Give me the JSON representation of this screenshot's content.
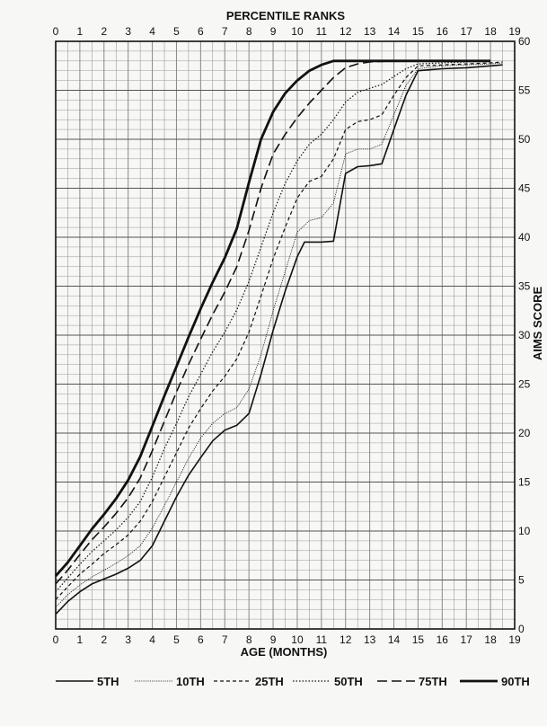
{
  "chart_data": {
    "type": "line",
    "title": "PERCENTILE RANKS",
    "xlabel": "AGE (MONTHS)",
    "ylabel": "AIMS SCORE",
    "xlim": [
      0,
      19
    ],
    "ylim": [
      0,
      60
    ],
    "x_ticks": [
      "0",
      "1",
      "2",
      "3",
      "4",
      "5",
      "6",
      "7",
      "8",
      "9",
      "10",
      "11",
      "12",
      "13",
      "14",
      "15",
      "16",
      "17",
      "18",
      "19"
    ],
    "y_ticks": [
      "0",
      "5",
      "10",
      "15",
      "20",
      "25",
      "30",
      "35",
      "40",
      "45",
      "50",
      "55",
      "60"
    ],
    "grid": true,
    "legend_position": "bottom",
    "series": [
      {
        "name": "5TH",
        "style": "solid-thin",
        "points": [
          [
            0,
            1.5
          ],
          [
            0.5,
            2.8
          ],
          [
            1,
            3.8
          ],
          [
            1.5,
            4.6
          ],
          [
            2,
            5.1
          ],
          [
            2.5,
            5.6
          ],
          [
            3,
            6.2
          ],
          [
            3.5,
            7.0
          ],
          [
            4,
            8.5
          ],
          [
            4.5,
            11.0
          ],
          [
            5,
            13.5
          ],
          [
            5.5,
            15.7
          ],
          [
            6,
            17.5
          ],
          [
            6.5,
            19.2
          ],
          [
            7,
            20.3
          ],
          [
            7.5,
            20.8
          ],
          [
            8,
            22.0
          ],
          [
            8.5,
            26.0
          ],
          [
            9,
            30.5
          ],
          [
            9.5,
            34.5
          ],
          [
            10,
            38.0
          ],
          [
            10.3,
            39.5
          ],
          [
            11,
            39.5
          ],
          [
            11.5,
            39.6
          ],
          [
            12,
            46.5
          ],
          [
            12.5,
            47.2
          ],
          [
            13,
            47.3
          ],
          [
            13.5,
            47.5
          ],
          [
            14,
            51.0
          ],
          [
            14.5,
            54.5
          ],
          [
            15,
            57.0
          ],
          [
            15.5,
            57.1
          ],
          [
            16,
            57.2
          ],
          [
            17,
            57.3
          ],
          [
            18,
            57.5
          ],
          [
            18.5,
            57.6
          ]
        ]
      },
      {
        "name": "10TH",
        "style": "dotted-fine",
        "points": [
          [
            0,
            2.2
          ],
          [
            0.5,
            3.5
          ],
          [
            1,
            4.5
          ],
          [
            1.5,
            5.3
          ],
          [
            2,
            6.0
          ],
          [
            2.5,
            6.7
          ],
          [
            3,
            7.5
          ],
          [
            3.5,
            8.5
          ],
          [
            4,
            10.3
          ],
          [
            4.5,
            12.6
          ],
          [
            5,
            15.0
          ],
          [
            5.5,
            17.4
          ],
          [
            6,
            19.5
          ],
          [
            6.5,
            21.0
          ],
          [
            7,
            22.0
          ],
          [
            7.5,
            22.6
          ],
          [
            8,
            24.5
          ],
          [
            8.5,
            28.0
          ],
          [
            9,
            32.5
          ],
          [
            9.5,
            36.5
          ],
          [
            10,
            40.5
          ],
          [
            10.5,
            41.7
          ],
          [
            11,
            42.0
          ],
          [
            11.5,
            43.5
          ],
          [
            12,
            48.5
          ],
          [
            12.5,
            49.0
          ],
          [
            13,
            49.0
          ],
          [
            13.5,
            49.5
          ],
          [
            14,
            52.5
          ],
          [
            14.5,
            55.5
          ],
          [
            15,
            57.2
          ],
          [
            16,
            57.5
          ],
          [
            17,
            57.6
          ],
          [
            18,
            57.7
          ],
          [
            18.5,
            57.8
          ]
        ]
      },
      {
        "name": "25TH",
        "style": "short-dash",
        "points": [
          [
            0,
            3.0
          ],
          [
            0.5,
            4.3
          ],
          [
            1,
            5.6
          ],
          [
            1.5,
            6.6
          ],
          [
            2,
            7.7
          ],
          [
            2.5,
            8.6
          ],
          [
            3,
            9.6
          ],
          [
            3.5,
            11.0
          ],
          [
            4,
            13.0
          ],
          [
            4.5,
            15.5
          ],
          [
            5,
            18.0
          ],
          [
            5.5,
            20.5
          ],
          [
            6,
            22.5
          ],
          [
            6.5,
            24.3
          ],
          [
            7,
            25.8
          ],
          [
            7.5,
            27.6
          ],
          [
            8,
            30.3
          ],
          [
            8.5,
            34.0
          ],
          [
            9,
            37.8
          ],
          [
            9.5,
            41.0
          ],
          [
            10,
            44.0
          ],
          [
            10.5,
            45.7
          ],
          [
            11,
            46.2
          ],
          [
            11.5,
            48.0
          ],
          [
            12,
            51.0
          ],
          [
            12.5,
            51.8
          ],
          [
            13,
            52.0
          ],
          [
            13.5,
            52.5
          ],
          [
            14,
            54.5
          ],
          [
            14.5,
            56.3
          ],
          [
            15,
            57.5
          ],
          [
            16,
            57.6
          ],
          [
            17,
            57.7
          ],
          [
            18,
            57.8
          ],
          [
            18.5,
            57.9
          ]
        ]
      },
      {
        "name": "50TH",
        "style": "dotted",
        "points": [
          [
            0,
            3.8
          ],
          [
            0.5,
            5.2
          ],
          [
            1,
            6.6
          ],
          [
            1.5,
            7.9
          ],
          [
            2,
            9.0
          ],
          [
            2.5,
            10.1
          ],
          [
            3,
            11.4
          ],
          [
            3.5,
            13.0
          ],
          [
            4,
            15.5
          ],
          [
            4.5,
            18.4
          ],
          [
            5,
            21.0
          ],
          [
            5.5,
            23.7
          ],
          [
            6,
            26.0
          ],
          [
            6.5,
            28.3
          ],
          [
            7,
            30.3
          ],
          [
            7.5,
            32.6
          ],
          [
            8,
            35.5
          ],
          [
            8.5,
            39.0
          ],
          [
            9,
            42.5
          ],
          [
            9.5,
            45.5
          ],
          [
            10,
            47.8
          ],
          [
            10.5,
            49.5
          ],
          [
            11,
            50.5
          ],
          [
            11.5,
            52.0
          ],
          [
            12,
            53.8
          ],
          [
            12.5,
            54.8
          ],
          [
            13,
            55.2
          ],
          [
            13.5,
            55.6
          ],
          [
            14,
            56.4
          ],
          [
            14.5,
            57.2
          ],
          [
            15,
            57.7
          ],
          [
            16,
            57.8
          ],
          [
            17,
            57.9
          ],
          [
            18,
            58.0
          ]
        ]
      },
      {
        "name": "75TH",
        "style": "long-dash",
        "points": [
          [
            0,
            4.6
          ],
          [
            0.5,
            6.0
          ],
          [
            1,
            7.6
          ],
          [
            1.5,
            9.1
          ],
          [
            2,
            10.4
          ],
          [
            2.5,
            11.8
          ],
          [
            3,
            13.4
          ],
          [
            3.5,
            15.4
          ],
          [
            4,
            18.2
          ],
          [
            4.5,
            21.2
          ],
          [
            5,
            24.2
          ],
          [
            5.5,
            27.0
          ],
          [
            6,
            29.6
          ],
          [
            6.5,
            32.1
          ],
          [
            7,
            34.4
          ],
          [
            7.5,
            37.0
          ],
          [
            8,
            40.7
          ],
          [
            8.5,
            45.0
          ],
          [
            9,
            48.5
          ],
          [
            9.5,
            50.5
          ],
          [
            10,
            52.2
          ],
          [
            10.5,
            53.7
          ],
          [
            11,
            55.0
          ],
          [
            11.5,
            56.3
          ],
          [
            12,
            57.3
          ],
          [
            12.5,
            57.7
          ],
          [
            13,
            57.9
          ],
          [
            14,
            58.0
          ],
          [
            15,
            58.0
          ],
          [
            16,
            58.0
          ],
          [
            17,
            58.0
          ],
          [
            18,
            58.0
          ]
        ]
      },
      {
        "name": "90TH",
        "style": "solid-thick",
        "points": [
          [
            0,
            5.4
          ],
          [
            0.5,
            6.8
          ],
          [
            1,
            8.5
          ],
          [
            1.5,
            10.2
          ],
          [
            2,
            11.7
          ],
          [
            2.5,
            13.3
          ],
          [
            3,
            15.2
          ],
          [
            3.5,
            17.6
          ],
          [
            4,
            20.7
          ],
          [
            4.5,
            23.8
          ],
          [
            5,
            26.8
          ],
          [
            5.5,
            29.8
          ],
          [
            6,
            32.7
          ],
          [
            6.5,
            35.4
          ],
          [
            7,
            37.9
          ],
          [
            7.5,
            40.9
          ],
          [
            8,
            45.6
          ],
          [
            8.5,
            50.0
          ],
          [
            9,
            52.8
          ],
          [
            9.5,
            54.7
          ],
          [
            10,
            56.0
          ],
          [
            10.5,
            57.0
          ],
          [
            11,
            57.6
          ],
          [
            11.5,
            58.0
          ],
          [
            12,
            58.0
          ],
          [
            13,
            58.0
          ],
          [
            14,
            58.0
          ],
          [
            15,
            58.0
          ],
          [
            16,
            58.0
          ],
          [
            17,
            58.0
          ],
          [
            18,
            58.0
          ]
        ]
      }
    ]
  }
}
